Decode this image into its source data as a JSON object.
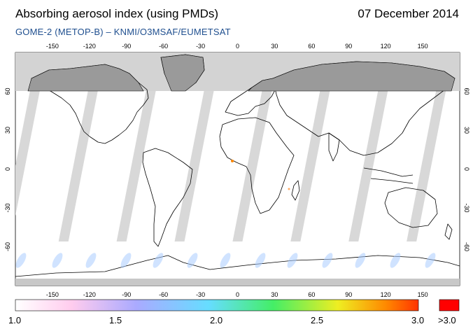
{
  "header": {
    "title": "Absorbing aerosol index (using PMDs)",
    "date": "07 December 2014",
    "subtitle": "GOME-2 (METOP-B)  –  KNMI/O3MSAF/EUMETSAT"
  },
  "map": {
    "projection": "equirectangular",
    "lon_range": [
      -180,
      180
    ],
    "lat_range": [
      -90,
      90
    ],
    "lon_ticks": [
      "-150",
      "-120",
      "-90",
      "-60",
      "-30",
      "0",
      "30",
      "60",
      "90",
      "120",
      "150"
    ],
    "lat_ticks": [
      "60",
      "30",
      "0",
      "-30",
      "-60"
    ],
    "colors": {
      "polar_night": "#d3d3d3",
      "land_north": "#9a9a9a",
      "swath_gap_ocean": "#d8d8d8",
      "swath_gap_land": "#a8a8a8",
      "coast": "#000000"
    }
  },
  "colorbar": {
    "labels": [
      "1.0",
      "1.5",
      "2.0",
      "2.5",
      "3.0"
    ],
    "overflow_label": ">3.0",
    "range": [
      1.0,
      3.0
    ],
    "overflow_color": "#ff0000",
    "stops": [
      "#ffffff",
      "#ffccee",
      "#aaaaff",
      "#66ddff",
      "#44ee66",
      "#eeee22",
      "#ff8800",
      "#ff3300"
    ]
  }
}
